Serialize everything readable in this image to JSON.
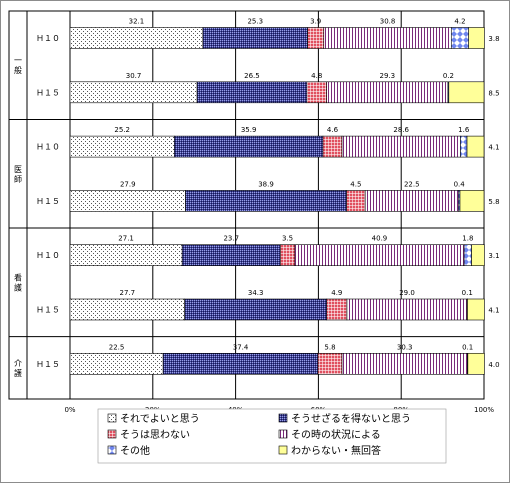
{
  "chart_data": {
    "type": "bar",
    "stacked": true,
    "orientation": "horizontal",
    "percent_stacked": true,
    "xlim": [
      0,
      100
    ],
    "x_ticks": [
      "0%",
      "20%",
      "40%",
      "60%",
      "80%",
      "100%"
    ],
    "groups": [
      {
        "label": "一般",
        "rows": [
          0,
          1
        ]
      },
      {
        "label": "医師",
        "rows": [
          2,
          3
        ]
      },
      {
        "label": "看護",
        "rows": [
          4,
          5
        ]
      },
      {
        "label": "介護",
        "rows": [
          6
        ]
      }
    ],
    "categories": [
      "Ｈ１０",
      "Ｈ１５",
      "Ｈ１０",
      "Ｈ１５",
      "Ｈ１０",
      "Ｈ１５",
      "Ｈ１５"
    ],
    "series": [
      {
        "name": "それでよいと思う",
        "color": "#ffffff",
        "values": [
          32.1,
          30.7,
          25.2,
          27.9,
          27.1,
          27.7,
          22.5
        ]
      },
      {
        "name": "そうせざるを得ないと思う",
        "color": "#3a3f9a",
        "values": [
          25.3,
          26.5,
          35.9,
          38.9,
          23.7,
          34.3,
          37.4
        ]
      },
      {
        "name": "そうは思わない",
        "color": "#e05060",
        "values": [
          3.9,
          4.8,
          4.6,
          4.5,
          3.5,
          4.9,
          5.8
        ]
      },
      {
        "name": "その時の状況による",
        "color": "#7a2a7a",
        "values": [
          30.8,
          29.3,
          28.6,
          22.5,
          40.9,
          29.0,
          30.3
        ]
      },
      {
        "name": "その他",
        "color": "#6f86ee",
        "values": [
          4.2,
          0.2,
          1.6,
          0.4,
          1.8,
          0.1,
          0.1
        ]
      },
      {
        "name": "わからない・無回答",
        "color": "#ffff99",
        "values": [
          3.8,
          8.5,
          4.1,
          5.8,
          3.1,
          4.1,
          4.0
        ]
      }
    ],
    "value_labels": [
      [
        "32.1",
        "30.7",
        "25.2",
        "27.9",
        "27.1",
        "27.7",
        "22.5"
      ],
      [
        "25.3",
        "26.5",
        "35.9",
        "38.9",
        "23.7",
        "34.3",
        "37.4"
      ],
      [
        "3.9",
        "4.8",
        "4.6",
        "4.5",
        "3.5",
        "4.9",
        "5.8"
      ],
      [
        "30.8",
        "29.3",
        "28.6",
        "22.5",
        "40.9",
        "29.0",
        "30.3"
      ],
      [
        "4.2",
        "0.2",
        "1.6",
        "0.4",
        "1.8",
        "0.1",
        "0.1"
      ],
      [
        "3.8",
        "8.5",
        "4.1",
        "5.8",
        "3.1",
        "4.1",
        "4.0"
      ]
    ],
    "legend_position": "bottom",
    "grid": true
  }
}
